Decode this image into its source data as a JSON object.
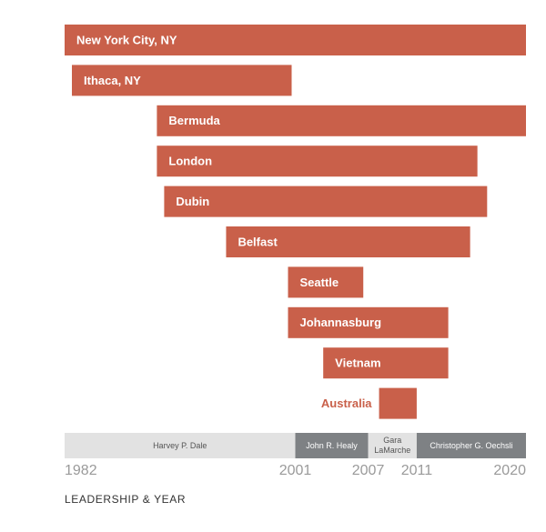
{
  "chart_data": {
    "type": "timeline",
    "color": "#c9604a",
    "categories": [
      "New York City, NY",
      "Ithaca, NY",
      "Bermuda",
      "London",
      "Dubin",
      "Belfast",
      "Seattle",
      "Johannasburg",
      "Vietnam",
      "Australia"
    ],
    "starts": [
      1982,
      1982.6,
      1989.6,
      1989.6,
      1990.2,
      1995.3,
      2000.4,
      2000.4,
      2003.3,
      2007.9
    ],
    "ends": [
      2020,
      2000.7,
      2020,
      2016.0,
      2016.8,
      2015.4,
      2006.6,
      2013.6,
      2013.6,
      2011.0
    ],
    "leadership": [
      {
        "name": "Harvey P. Dale",
        "start": 1982,
        "end": 2001,
        "color": "#e2e2e2",
        "text_color": "#555555"
      },
      {
        "name": "John R. Healy",
        "start": 2001,
        "end": 2007,
        "color": "#7e8184",
        "text_color": "#ffffff"
      },
      {
        "name": "Gara LaMarche",
        "start": 2007,
        "end": 2011,
        "color": "#e2e2e2",
        "text_color": "#555555"
      },
      {
        "name": "Christopher G. Oechsli",
        "start": 2011,
        "end": 2020,
        "color": "#7e8184",
        "text_color": "#ffffff"
      }
    ],
    "xlim": [
      1982,
      2020
    ],
    "xticks": [
      1982,
      2001,
      2007,
      2011,
      2020
    ],
    "xlabel": "LEADERSHIP & YEAR"
  }
}
